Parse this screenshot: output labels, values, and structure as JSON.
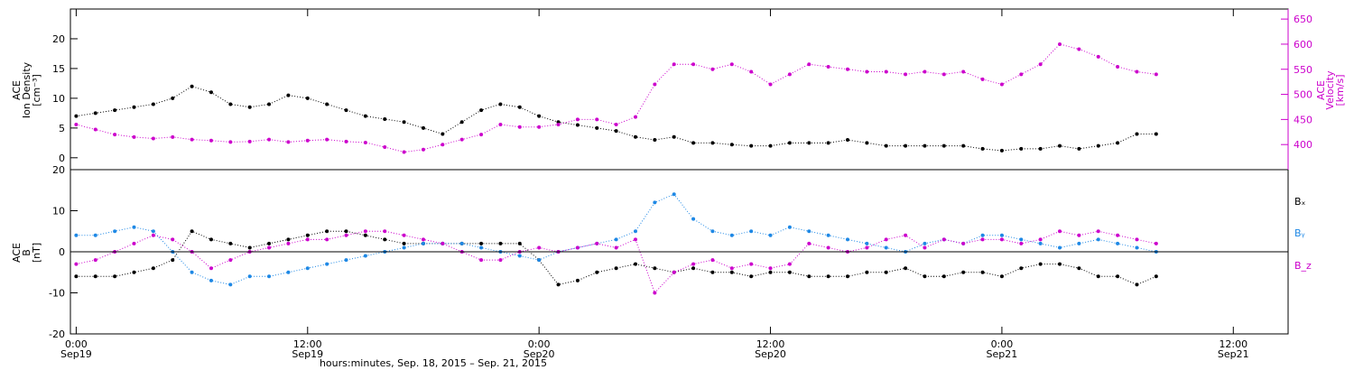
{
  "colors": {
    "black": "#000000",
    "magenta": "#cc00cc",
    "blue": "#1e88e5"
  },
  "footer_label": "hours:minutes, Sep. 18, 2015 – Sep. 21, 2015",
  "chart_data": [
    {
      "type": "scatter",
      "panel": "top",
      "ylabel_left": [
        "ACE",
        "Ion Density",
        "[cm⁻³]"
      ],
      "ylabel_right": [
        "ACE",
        "Velocity",
        "[km/s]"
      ],
      "ylim_left": [
        -2,
        25
      ],
      "ylim_right": [
        350,
        670
      ],
      "yticks_left": [
        0,
        5,
        10,
        15,
        20
      ],
      "yticks_right": [
        400,
        450,
        500,
        550,
        600,
        650
      ],
      "x_hours_range": [
        -0.3,
        60
      ],
      "series": [
        {
          "axis": "left",
          "color": "#000000",
          "x": [
            0,
            1,
            2,
            3,
            4,
            5,
            6,
            7,
            8,
            9,
            10,
            11,
            12,
            13,
            14,
            15,
            16,
            17,
            18,
            19,
            20,
            21,
            22,
            23,
            24,
            25,
            26,
            27,
            28,
            29,
            30,
            31,
            32,
            33,
            34,
            35,
            36,
            37,
            38,
            39,
            40,
            41,
            42,
            43,
            44,
            45,
            46,
            47,
            48,
            49,
            50,
            51,
            52,
            53,
            54,
            55,
            56,
            57,
            58,
            59,
            60,
            61,
            62
          ],
          "y": [
            7,
            7.5,
            8,
            8.5,
            9,
            10,
            12,
            11,
            9,
            8.5,
            9,
            10.5,
            10,
            9,
            8,
            7,
            6.5,
            6,
            5,
            4,
            6,
            8,
            9,
            8.5,
            7,
            6,
            5.5,
            5,
            4.5,
            3.5,
            3,
            3.5,
            2.5,
            2.5,
            2.2,
            2,
            2,
            2.5,
            2.5,
            2.5,
            3,
            2.5,
            2,
            2,
            2,
            2,
            2,
            1.5,
            1.2,
            1.5,
            1.5,
            2,
            1.5,
            2,
            2.5,
            4,
            4,
            5,
            5,
            null,
            null,
            null,
            null
          ]
        },
        {
          "axis": "right",
          "color": "#cc00cc",
          "x": [
            0,
            1,
            2,
            3,
            4,
            5,
            6,
            7,
            8,
            9,
            10,
            11,
            12,
            13,
            14,
            15,
            16,
            17,
            18,
            19,
            20,
            21,
            22,
            23,
            24,
            25,
            26,
            27,
            28,
            29,
            30,
            31,
            32,
            33,
            34,
            35,
            36,
            37,
            38,
            39,
            40,
            41,
            42,
            43,
            44,
            45,
            46,
            47,
            48,
            49,
            50,
            51,
            52,
            53,
            54,
            55,
            56,
            57,
            58,
            59,
            60,
            61,
            62
          ],
          "y": [
            440,
            430,
            420,
            415,
            412,
            415,
            410,
            408,
            405,
            406,
            410,
            405,
            408,
            410,
            406,
            404,
            395,
            385,
            390,
            400,
            410,
            420,
            440,
            435,
            435,
            440,
            450,
            450,
            440,
            455,
            520,
            560,
            560,
            550,
            560,
            545,
            520,
            540,
            560,
            555,
            550,
            545,
            545,
            540,
            545,
            540,
            545,
            530,
            520,
            540,
            560,
            600,
            590,
            575,
            555,
            545,
            540,
            530,
            520,
            515,
            510,
            null,
            null
          ]
        }
      ]
    },
    {
      "type": "scatter",
      "panel": "bottom",
      "ylabel_left": [
        "ACE",
        "B",
        "[nT]"
      ],
      "ylim": [
        -20,
        20
      ],
      "yticks": [
        -20,
        -10,
        0,
        10,
        20
      ],
      "x_hours_range": [
        -0.3,
        60
      ],
      "zero_line": true,
      "legend_position": "right",
      "series": [
        {
          "name": "Bₓ",
          "color": "#000000",
          "x": [
            0,
            1,
            2,
            3,
            4,
            5,
            6,
            7,
            8,
            9,
            10,
            11,
            12,
            13,
            14,
            15,
            16,
            17,
            18,
            19,
            20,
            21,
            22,
            23,
            24,
            25,
            26,
            27,
            28,
            29,
            30,
            31,
            32,
            33,
            34,
            35,
            36,
            37,
            38,
            39,
            40,
            41,
            42,
            43,
            44,
            45,
            46,
            47,
            48,
            49,
            50,
            51,
            52,
            53,
            54,
            55,
            56,
            57,
            58,
            59,
            60,
            61,
            62
          ],
          "y": [
            -6,
            -6,
            -6,
            -5,
            -4,
            -2,
            5,
            3,
            2,
            1,
            2,
            3,
            4,
            5,
            5,
            4,
            3,
            2,
            2,
            2,
            2,
            2,
            2,
            2,
            -2,
            -8,
            -7,
            -5,
            -4,
            -3,
            -4,
            -5,
            -4,
            -5,
            -5,
            -6,
            -5,
            -5,
            -6,
            -6,
            -6,
            -5,
            -5,
            -4,
            -6,
            -6,
            -5,
            -5,
            -6,
            -4,
            -3,
            -3,
            -4,
            -6,
            -6,
            -8,
            -6,
            1,
            -3,
            -4,
            -5,
            null,
            null
          ]
        },
        {
          "name": "Bᵧ",
          "color": "#1e88e5",
          "x": [
            0,
            1,
            2,
            3,
            4,
            5,
            6,
            7,
            8,
            9,
            10,
            11,
            12,
            13,
            14,
            15,
            16,
            17,
            18,
            19,
            20,
            21,
            22,
            23,
            24,
            25,
            26,
            27,
            28,
            29,
            30,
            31,
            32,
            33,
            34,
            35,
            36,
            37,
            38,
            39,
            40,
            41,
            42,
            43,
            44,
            45,
            46,
            47,
            48,
            49,
            50,
            51,
            52,
            53,
            54,
            55,
            56,
            57,
            58,
            59,
            60,
            61,
            62
          ],
          "y": [
            4,
            4,
            5,
            6,
            5,
            0,
            -5,
            -7,
            -8,
            -6,
            -6,
            -5,
            -4,
            -3,
            -2,
            -1,
            0,
            1,
            2,
            2,
            2,
            1,
            0,
            -1,
            -2,
            0,
            1,
            2,
            3,
            5,
            12,
            14,
            8,
            5,
            4,
            5,
            4,
            6,
            5,
            4,
            3,
            2,
            1,
            0,
            2,
            3,
            2,
            4,
            4,
            3,
            2,
            1,
            2,
            3,
            2,
            1,
            0,
            0,
            -1,
            -1,
            0,
            null,
            null
          ]
        },
        {
          "name": "B_z",
          "color": "#cc00cc",
          "x": [
            0,
            1,
            2,
            3,
            4,
            5,
            6,
            7,
            8,
            9,
            10,
            11,
            12,
            13,
            14,
            15,
            16,
            17,
            18,
            19,
            20,
            21,
            22,
            23,
            24,
            25,
            26,
            27,
            28,
            29,
            30,
            31,
            32,
            33,
            34,
            35,
            36,
            37,
            38,
            39,
            40,
            41,
            42,
            43,
            44,
            45,
            46,
            47,
            48,
            49,
            50,
            51,
            52,
            53,
            54,
            55,
            56,
            57,
            58,
            59,
            60,
            61,
            62
          ],
          "y": [
            -3,
            -2,
            0,
            2,
            4,
            3,
            0,
            -4,
            -2,
            0,
            1,
            2,
            3,
            3,
            4,
            5,
            5,
            4,
            3,
            2,
            0,
            -2,
            -2,
            0,
            1,
            0,
            1,
            2,
            1,
            3,
            -10,
            -5,
            -3,
            -2,
            -4,
            -3,
            -4,
            -3,
            2,
            1,
            0,
            1,
            3,
            4,
            1,
            3,
            2,
            3,
            3,
            2,
            3,
            5,
            4,
            5,
            4,
            3,
            2,
            5,
            3,
            2,
            2,
            null,
            null
          ]
        }
      ],
      "legend": [
        "Bₓ",
        "Bᵧ",
        "B_z"
      ]
    }
  ],
  "xaxis": {
    "ticks": [
      {
        "hours": 0,
        "label": "0:00",
        "sub": "Sep19"
      },
      {
        "hours": 12,
        "label": "12:00",
        "sub": "Sep19"
      },
      {
        "hours": 24,
        "label": "0:00",
        "sub": "Sep20"
      },
      {
        "hours": 36,
        "label": "12:00",
        "sub": "Sep20"
      },
      {
        "hours": 48,
        "label": "0:00",
        "sub": "Sep21"
      },
      {
        "hours": 60,
        "label": "12:00",
        "sub": "Sep21"
      }
    ]
  }
}
